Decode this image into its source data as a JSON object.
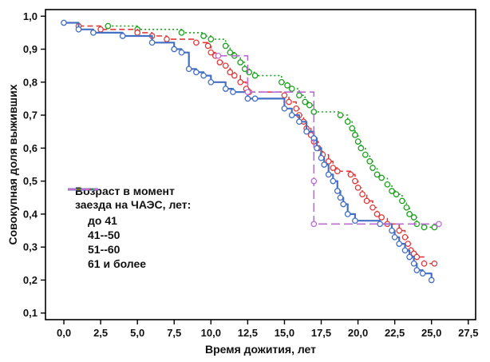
{
  "figure": {
    "background": "#ffffff",
    "frame_color": "#000000"
  },
  "chart_data": {
    "type": "line",
    "subtype": "kaplan-meier-step-survival",
    "title": "",
    "xlabel": "Время дожития, лет",
    "ylabel": "Совокупная доля выживших",
    "xlim": [
      -1.25,
      28.0
    ],
    "ylim": [
      0.08,
      1.02
    ],
    "grid": false,
    "x_ticks": [
      0,
      2.5,
      5,
      7.5,
      10,
      12.5,
      15,
      17.5,
      20,
      22.5,
      25,
      27.5
    ],
    "x_tick_labels": [
      "0,0",
      "2,5",
      "5,0",
      "7,5",
      "10,0",
      "12,5",
      "15,0",
      "17,5",
      "20,0",
      "22,5",
      "25,0",
      "27,5"
    ],
    "y_ticks": [
      0.1,
      0.2,
      0.3,
      0.4,
      0.5,
      0.6,
      0.7,
      0.8,
      0.9,
      1.0
    ],
    "y_tick_labels": [
      "0,1",
      "0,2",
      "0,3",
      "0,4",
      "0,5",
      "0,6",
      "0,7",
      "0,8",
      "0,9",
      "1,0"
    ],
    "legend": {
      "position": "inside-left-bottom",
      "title_lines": [
        "Возраст в момент",
        "заезда на ЧАЭС, лет:"
      ]
    },
    "marker": {
      "shape": "open-circle",
      "radius": 3.2
    },
    "series": [
      {
        "name": "51--60",
        "color": "#1ea11e",
        "dash": "dotted",
        "line_width": 1.6,
        "points": [
          [
            3,
            0.97
          ],
          [
            5,
            0.96
          ],
          [
            8,
            0.95
          ],
          [
            9.5,
            0.94
          ],
          [
            10,
            0.93
          ],
          [
            11,
            0.91
          ],
          [
            11.3,
            0.89
          ],
          [
            11.6,
            0.88
          ],
          [
            12,
            0.86
          ],
          [
            12.3,
            0.84
          ],
          [
            12.6,
            0.83
          ],
          [
            13,
            0.82
          ],
          [
            14.8,
            0.8
          ],
          [
            15.2,
            0.79
          ],
          [
            15.5,
            0.78
          ],
          [
            16,
            0.76
          ],
          [
            16.4,
            0.74
          ],
          [
            16.7,
            0.73
          ],
          [
            17,
            0.71
          ],
          [
            18.8,
            0.7
          ],
          [
            19.3,
            0.68
          ],
          [
            19.6,
            0.66
          ],
          [
            19.8,
            0.64
          ],
          [
            20,
            0.62
          ],
          [
            20.2,
            0.6
          ],
          [
            20.5,
            0.58
          ],
          [
            20.8,
            0.56
          ],
          [
            21,
            0.54
          ],
          [
            21.3,
            0.52
          ],
          [
            21.6,
            0.51
          ],
          [
            22,
            0.49
          ],
          [
            22.3,
            0.47
          ],
          [
            22.6,
            0.46
          ],
          [
            23,
            0.44
          ],
          [
            23.3,
            0.42
          ],
          [
            23.5,
            0.4
          ],
          [
            23.8,
            0.39
          ],
          [
            24,
            0.37
          ],
          [
            24.5,
            0.36
          ],
          [
            25.2,
            0.36
          ]
        ]
      },
      {
        "name": "41--50",
        "color": "#e03b3b",
        "dash": "dashed",
        "line_width": 1.6,
        "points": [
          [
            1,
            0.97
          ],
          [
            2.5,
            0.96
          ],
          [
            5,
            0.95
          ],
          [
            6,
            0.94
          ],
          [
            7,
            0.93
          ],
          [
            9,
            0.92
          ],
          [
            9.8,
            0.91
          ],
          [
            10,
            0.89
          ],
          [
            10.3,
            0.88
          ],
          [
            10.6,
            0.86
          ],
          [
            11,
            0.85
          ],
          [
            11.3,
            0.83
          ],
          [
            11.6,
            0.82
          ],
          [
            12,
            0.8
          ],
          [
            12.4,
            0.78
          ],
          [
            12.6,
            0.77
          ],
          [
            15,
            0.76
          ],
          [
            15.3,
            0.74
          ],
          [
            15.8,
            0.72
          ],
          [
            16,
            0.7
          ],
          [
            16.3,
            0.68
          ],
          [
            16.5,
            0.66
          ],
          [
            16.8,
            0.64
          ],
          [
            17,
            0.62
          ],
          [
            17.3,
            0.6
          ],
          [
            17.6,
            0.58
          ],
          [
            18,
            0.56
          ],
          [
            18.3,
            0.54
          ],
          [
            18.6,
            0.53
          ],
          [
            19.5,
            0.52
          ],
          [
            19.8,
            0.5
          ],
          [
            20,
            0.48
          ],
          [
            20.3,
            0.46
          ],
          [
            20.6,
            0.44
          ],
          [
            21,
            0.42
          ],
          [
            21.3,
            0.4
          ],
          [
            21.6,
            0.39
          ],
          [
            22,
            0.37
          ],
          [
            22.8,
            0.35
          ],
          [
            23.2,
            0.33
          ],
          [
            23.4,
            0.31
          ],
          [
            23.6,
            0.29
          ],
          [
            23.8,
            0.28
          ],
          [
            24,
            0.27
          ],
          [
            24.5,
            0.25
          ],
          [
            25.2,
            0.25
          ]
        ]
      },
      {
        "name": "до 41",
        "color": "#4470c4",
        "dash": "solid",
        "line_width": 2.2,
        "points": [
          [
            0,
            0.98
          ],
          [
            1,
            0.96
          ],
          [
            2,
            0.95
          ],
          [
            4,
            0.94
          ],
          [
            6,
            0.92
          ],
          [
            7.5,
            0.9
          ],
          [
            8,
            0.89
          ],
          [
            8.5,
            0.84
          ],
          [
            9,
            0.83
          ],
          [
            9.5,
            0.82
          ],
          [
            10,
            0.8
          ],
          [
            11,
            0.78
          ],
          [
            11.5,
            0.77
          ],
          [
            12.5,
            0.75
          ],
          [
            13,
            0.75
          ],
          [
            15,
            0.72
          ],
          [
            15.5,
            0.7
          ],
          [
            16,
            0.68
          ],
          [
            16.5,
            0.65
          ],
          [
            17,
            0.63
          ],
          [
            17.2,
            0.6
          ],
          [
            17.5,
            0.57
          ],
          [
            17.7,
            0.55
          ],
          [
            18,
            0.52
          ],
          [
            18.3,
            0.5
          ],
          [
            18.6,
            0.47
          ],
          [
            18.8,
            0.45
          ],
          [
            19,
            0.43
          ],
          [
            19.3,
            0.4
          ],
          [
            19.8,
            0.38
          ],
          [
            21.5,
            0.37
          ],
          [
            22.3,
            0.35
          ],
          [
            22.5,
            0.33
          ],
          [
            22.8,
            0.31
          ],
          [
            23.2,
            0.29
          ],
          [
            23.5,
            0.27
          ],
          [
            23.8,
            0.25
          ],
          [
            24,
            0.23
          ],
          [
            24.4,
            0.22
          ],
          [
            25,
            0.2
          ]
        ]
      },
      {
        "name": "61 и более",
        "color": "#bb6cd4",
        "dash": "longdash",
        "line_width": 1.6,
        "points": [
          [
            10.5,
            0.88
          ],
          [
            12.5,
            0.77
          ],
          [
            17,
            0.5
          ],
          [
            17,
            0.37
          ],
          [
            25.5,
            0.37
          ]
        ]
      }
    ],
    "legend_order": [
      "до 41",
      "41--50",
      "51--60",
      "61 и более"
    ]
  }
}
